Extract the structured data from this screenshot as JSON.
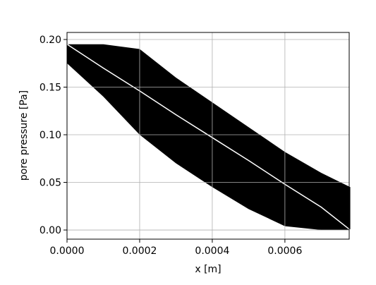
{
  "chart_data": {
    "type": "scatter",
    "xlabel": "x [m]",
    "ylabel": "pore pressure [Pa]",
    "x": [
      0,
      0.0001,
      0.0002,
      0.0003,
      0.0004,
      0.0005,
      0.0006,
      0.0007,
      0.00078
    ],
    "series": [
      {
        "color": "#000000",
        "values": [
          0.195,
          0.195,
          0.19,
          0.16,
          0.134,
          0.108,
          0.082,
          0.06,
          0.045
        ]
      },
      {
        "color": "#000000",
        "values": [
          0.175,
          0.14,
          0.1,
          0.07,
          0.045,
          0.022,
          0.004,
          0,
          0
        ]
      },
      {
        "color": "#ffffff",
        "values": [
          0.195,
          0.17,
          0.146,
          0.121,
          0.097,
          0.073,
          0.048,
          0.024,
          0
        ]
      }
    ],
    "xlim": [
      0,
      0.000777
    ],
    "ylim": [
      -0.0096,
      0.2074
    ],
    "xticks": [
      {
        "value": 0,
        "label": "0.0000"
      },
      {
        "value": 0.0002,
        "label": "0.0002"
      },
      {
        "value": 0.0004,
        "label": "0.0004"
      },
      {
        "value": 0.0006,
        "label": "0.0006"
      }
    ],
    "yticks": [
      {
        "value": 0,
        "label": "0.00"
      },
      {
        "value": 0.05,
        "label": "0.05"
      },
      {
        "value": 0.1,
        "label": "0.10"
      },
      {
        "value": 0.15,
        "label": "0.15"
      },
      {
        "value": 0.2,
        "label": "0.20"
      }
    ],
    "grid": true
  }
}
